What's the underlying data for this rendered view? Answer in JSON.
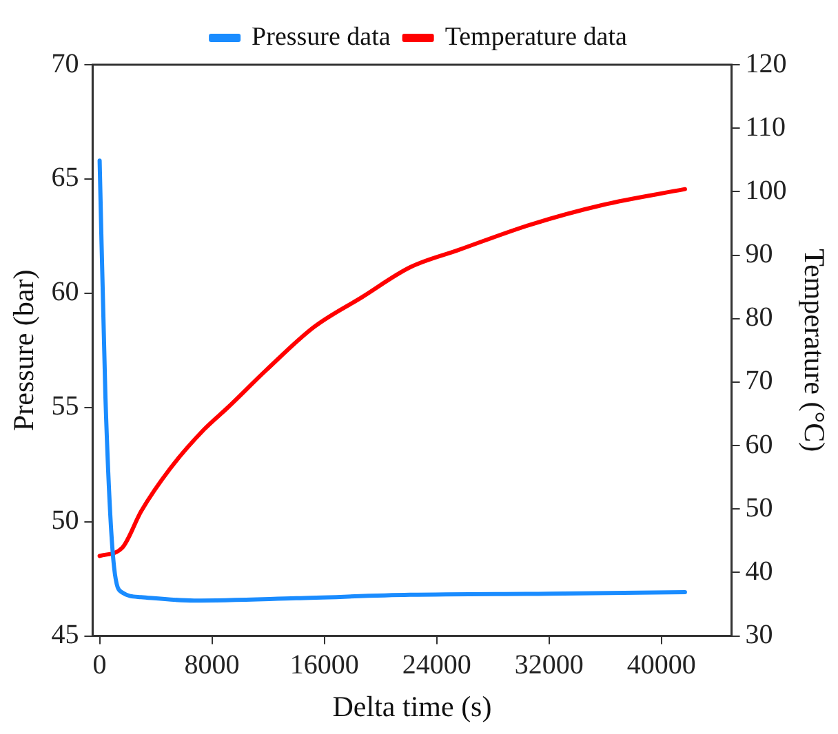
{
  "chart_data": {
    "type": "line",
    "xlabel": "Delta time (s)",
    "ylabel": "Pressure (bar)",
    "y2label": "Temperature (°C)",
    "xlim": [
      -500,
      45000
    ],
    "xticks": [
      0,
      8000,
      16000,
      24000,
      32000,
      40000
    ],
    "ylim": [
      45,
      70
    ],
    "yticks": [
      45,
      50,
      55,
      60,
      65,
      70
    ],
    "y2lim": [
      30,
      120
    ],
    "y2ticks": [
      30,
      40,
      50,
      60,
      70,
      80,
      90,
      100,
      110,
      120
    ],
    "legend": "top",
    "grid": false,
    "series": [
      {
        "name": "Pressure data",
        "color": "#1a8cff",
        "x": [
          0,
          410,
          1030,
          1610,
          2950,
          6740,
          14000,
          22100,
          32000,
          41680
        ],
        "values": [
          65.8,
          55.5,
          48.0,
          46.9,
          46.7,
          46.55,
          46.65,
          46.8,
          46.85,
          46.92
        ]
      },
      {
        "name": "Temperature data",
        "color": "#ff0000",
        "axis": "y2",
        "x": [
          0,
          1610,
          2970,
          5030,
          7420,
          9130,
          11870,
          15280,
          18700,
          22120,
          25540,
          30670,
          35800,
          41680
        ],
        "values": [
          42.6,
          43.9,
          49.7,
          56.4,
          62.5,
          66.0,
          71.9,
          78.7,
          83.4,
          88.1,
          90.8,
          94.8,
          97.9,
          100.4
        ]
      }
    ]
  }
}
